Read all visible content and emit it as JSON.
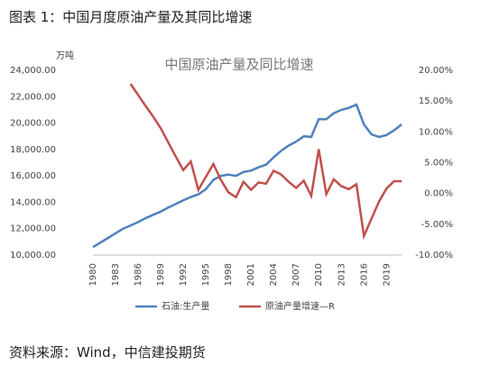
{
  "caption": "图表 1：中国月度原油产量及其同比增速",
  "source": "资料来源：Wind，中信建投期货",
  "chart_data": {
    "type": "line",
    "title": "中国原油产量及同比增速",
    "y_unit": "万吨",
    "x": [
      1980,
      1981,
      1982,
      1983,
      1984,
      1985,
      1986,
      1987,
      1988,
      1989,
      1990,
      1991,
      1992,
      1993,
      1994,
      1995,
      1996,
      1997,
      1998,
      1999,
      2000,
      2001,
      2002,
      2003,
      2004,
      2005,
      2006,
      2007,
      2008,
      2009,
      2010,
      2011,
      2012,
      2013,
      2014,
      2015,
      2016,
      2017,
      2018,
      2019,
      2020,
      2021
    ],
    "xlim": [
      1980,
      2021
    ],
    "xticks": [
      1980,
      1983,
      1986,
      1989,
      1992,
      1995,
      1998,
      2001,
      2004,
      2007,
      2010,
      2013,
      2016,
      2019
    ],
    "ylim": [
      10000,
      24000
    ],
    "yticks": [
      {
        "value": 10000,
        "label": "10,000.00"
      },
      {
        "value": 12000,
        "label": "12,000.00"
      },
      {
        "value": 14000,
        "label": "14,000.00"
      },
      {
        "value": 16000,
        "label": "16,000.00"
      },
      {
        "value": 18000,
        "label": "18,000.00"
      },
      {
        "value": 20000,
        "label": "20,000.00"
      },
      {
        "value": 22000,
        "label": "22,000.00"
      },
      {
        "value": 24000,
        "label": "24,000.00"
      }
    ],
    "y2lim": [
      -10,
      20
    ],
    "y2ticks": [
      {
        "value": -10,
        "label": "-10.00%"
      },
      {
        "value": -5,
        "label": "-5.00%"
      },
      {
        "value": 0,
        "label": "0.00%"
      },
      {
        "value": 5,
        "label": "5.00%"
      },
      {
        "value": 10,
        "label": "10.00%"
      },
      {
        "value": 15,
        "label": "15.00%"
      },
      {
        "value": 20,
        "label": "20.00%"
      }
    ],
    "grid": false,
    "legend": "bottom",
    "series": [
      {
        "name": "石油:生产量",
        "color": "#4f81bd",
        "values": [
          10600,
          10950,
          11300,
          11650,
          12000,
          12250,
          12500,
          12800,
          13050,
          13300,
          13600,
          13880,
          14150,
          14400,
          14600,
          15000,
          15700,
          16000,
          16100,
          16000,
          16300,
          16400,
          16650,
          16850,
          17400,
          17900,
          18300,
          18600,
          19000,
          18950,
          20300,
          20300,
          20750,
          21000,
          21150,
          21400,
          19900,
          19150,
          18950,
          19100,
          19450,
          19900
        ]
      },
      {
        "name": "原油产量增速—R",
        "color": "#c0504d",
        "axis": "y2",
        "values": [
          null,
          null,
          null,
          null,
          null,
          17.8,
          16,
          14.2,
          12.5,
          10.6,
          8.3,
          6,
          3.8,
          5.2,
          0.6,
          2.7,
          4.8,
          2.2,
          0.2,
          -0.6,
          1.9,
          0.6,
          1.8,
          1.6,
          3.7,
          3.1,
          1.9,
          0.9,
          2.1,
          -0.4,
          7.2,
          -0.1,
          2.3,
          1.2,
          0.7,
          1.5,
          -6.9,
          -4.1,
          -1.3,
          0.8,
          2.0,
          2.0
        ]
      }
    ]
  }
}
